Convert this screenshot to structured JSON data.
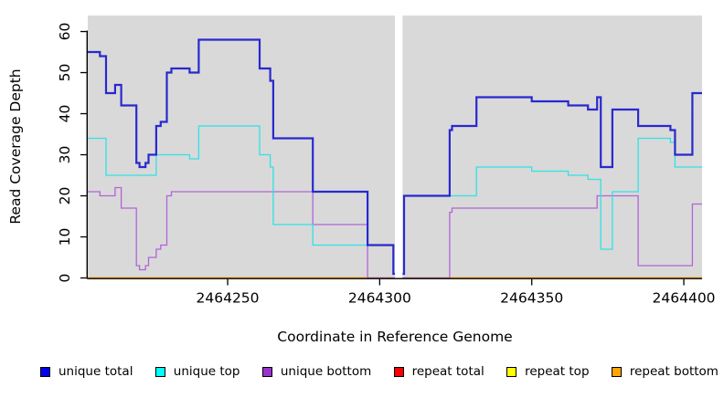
{
  "chart_data": {
    "type": "line",
    "subtype": "step-coverage-plot",
    "title": "",
    "xlabel": "Coordinate in Reference Genome",
    "ylabel": "Read Coverage Depth",
    "x_domain": [
      2464204,
      2464406
    ],
    "y_domain": [
      0,
      63.9
    ],
    "x_ticks": [
      2464250,
      2464300,
      2464350,
      2464400
    ],
    "y_ticks": [
      0,
      10,
      20,
      30,
      40,
      50,
      60
    ],
    "grid": false,
    "panel_bg": "#d9d9d9",
    "axis_color": "#000000",
    "gap_region": {
      "from": 2464305,
      "to": 2464307.5,
      "color": "#ffffff"
    },
    "legend_position": "bottom",
    "draw_order": [
      "repeat total",
      "repeat top",
      "repeat bottom",
      "unique bottom",
      "unique top",
      "unique total"
    ],
    "series": [
      {
        "name": "unique total",
        "color": "#2929cf",
        "legend_color": "#0000ee",
        "width": 2.2,
        "segments": [
          {
            "points": [
              [
                2464204,
                55
              ],
              [
                2464208,
                54
              ],
              [
                2464210,
                45
              ],
              [
                2464213,
                47
              ],
              [
                2464215,
                42
              ],
              [
                2464220,
                28
              ],
              [
                2464221,
                27
              ],
              [
                2464223,
                28
              ],
              [
                2464224,
                30
              ],
              [
                2464226.5,
                37
              ],
              [
                2464228,
                38
              ],
              [
                2464230,
                50
              ],
              [
                2464231.5,
                51
              ],
              [
                2464237.5,
                50
              ],
              [
                2464240.5,
                58
              ],
              [
                2464260.5,
                51
              ],
              [
                2464264,
                48
              ],
              [
                2464265,
                34
              ],
              [
                2464278,
                21
              ],
              [
                2464296,
                8
              ],
              [
                2464304.5,
                1
              ]
            ],
            "end": 2464305
          },
          {
            "points": [
              [
                2464307.5,
                1
              ],
              [
                2464308,
                20
              ],
              [
                2464323,
                36
              ],
              [
                2464323.8,
                37
              ],
              [
                2464331.8,
                44
              ],
              [
                2464350,
                43
              ],
              [
                2464362,
                42
              ],
              [
                2464368.5,
                41
              ],
              [
                2464371.5,
                44
              ],
              [
                2464372.7,
                27
              ],
              [
                2464376.5,
                41
              ],
              [
                2464385,
                37
              ],
              [
                2464395.6,
                36
              ],
              [
                2464397.1,
                30
              ],
              [
                2464402.8,
                45
              ]
            ],
            "end": 2464406
          }
        ]
      },
      {
        "name": "unique top",
        "color": "#30e2e6",
        "legend_color": "#00ffff",
        "width": 1.3,
        "segments": [
          {
            "points": [
              [
                2464204,
                34
              ],
              [
                2464210,
                25
              ],
              [
                2464226.5,
                30
              ],
              [
                2464237.5,
                29
              ],
              [
                2464240.5,
                37
              ],
              [
                2464260.5,
                30
              ],
              [
                2464264,
                27
              ],
              [
                2464265,
                13
              ],
              [
                2464278,
                8
              ],
              [
                2464304.5,
                1
              ]
            ],
            "end": 2464305
          },
          {
            "points": [
              [
                2464307.5,
                1
              ],
              [
                2464308,
                20
              ],
              [
                2464331.8,
                27
              ],
              [
                2464350,
                26
              ],
              [
                2464362,
                25
              ],
              [
                2464368.5,
                24
              ],
              [
                2464372.7,
                7
              ],
              [
                2464376.5,
                21
              ],
              [
                2464385,
                34
              ],
              [
                2464395.6,
                33
              ],
              [
                2464397.1,
                27
              ]
            ],
            "end": 2464406
          }
        ]
      },
      {
        "name": "unique bottom",
        "color": "#b164d9",
        "legend_color": "#9932cc",
        "width": 1.3,
        "segments": [
          {
            "points": [
              [
                2464204,
                21
              ],
              [
                2464208,
                20
              ],
              [
                2464213,
                22
              ],
              [
                2464215,
                17
              ],
              [
                2464220,
                3
              ],
              [
                2464221,
                2
              ],
              [
                2464223,
                3
              ],
              [
                2464224,
                5
              ],
              [
                2464226.5,
                7
              ],
              [
                2464228,
                8
              ],
              [
                2464230,
                20
              ],
              [
                2464231.5,
                21
              ],
              [
                2464278,
                13
              ],
              [
                2464296,
                0
              ]
            ],
            "end": 2464305
          },
          {
            "points": [
              [
                2464307.5,
                0
              ],
              [
                2464323,
                16
              ],
              [
                2464323.8,
                17
              ],
              [
                2464371.5,
                20
              ],
              [
                2464385,
                3
              ],
              [
                2464402.8,
                18
              ]
            ],
            "end": 2464406
          }
        ]
      },
      {
        "name": "repeat total",
        "color": "#ff0000",
        "legend_color": "#ff0000",
        "width": 1.3,
        "segments": [
          {
            "points": [
              [
                2464204,
                0
              ]
            ],
            "end": 2464305
          },
          {
            "points": [
              [
                2464307.5,
                0
              ]
            ],
            "end": 2464406
          }
        ]
      },
      {
        "name": "repeat top",
        "color": "#f5f500",
        "legend_color": "#ffff00",
        "width": 1.3,
        "segments": [
          {
            "points": [
              [
                2464204,
                0
              ]
            ],
            "end": 2464305
          },
          {
            "points": [
              [
                2464307.5,
                0
              ]
            ],
            "end": 2464406
          }
        ]
      },
      {
        "name": "repeat bottom",
        "color": "#ffa200",
        "legend_color": "#ffa500",
        "width": 1.6,
        "segments": [
          {
            "points": [
              [
                2464204,
                0
              ]
            ],
            "end": 2464305
          },
          {
            "points": [
              [
                2464307.5,
                0
              ]
            ],
            "end": 2464406
          }
        ]
      }
    ],
    "legend": [
      {
        "label": "unique total",
        "color": "#0000ee"
      },
      {
        "label": "unique top",
        "color": "#00ffff"
      },
      {
        "label": "unique bottom",
        "color": "#9932cc"
      },
      {
        "label": "repeat total",
        "color": "#ff0000"
      },
      {
        "label": "repeat top",
        "color": "#ffff00"
      },
      {
        "label": "repeat bottom",
        "color": "#ffa500"
      }
    ]
  }
}
